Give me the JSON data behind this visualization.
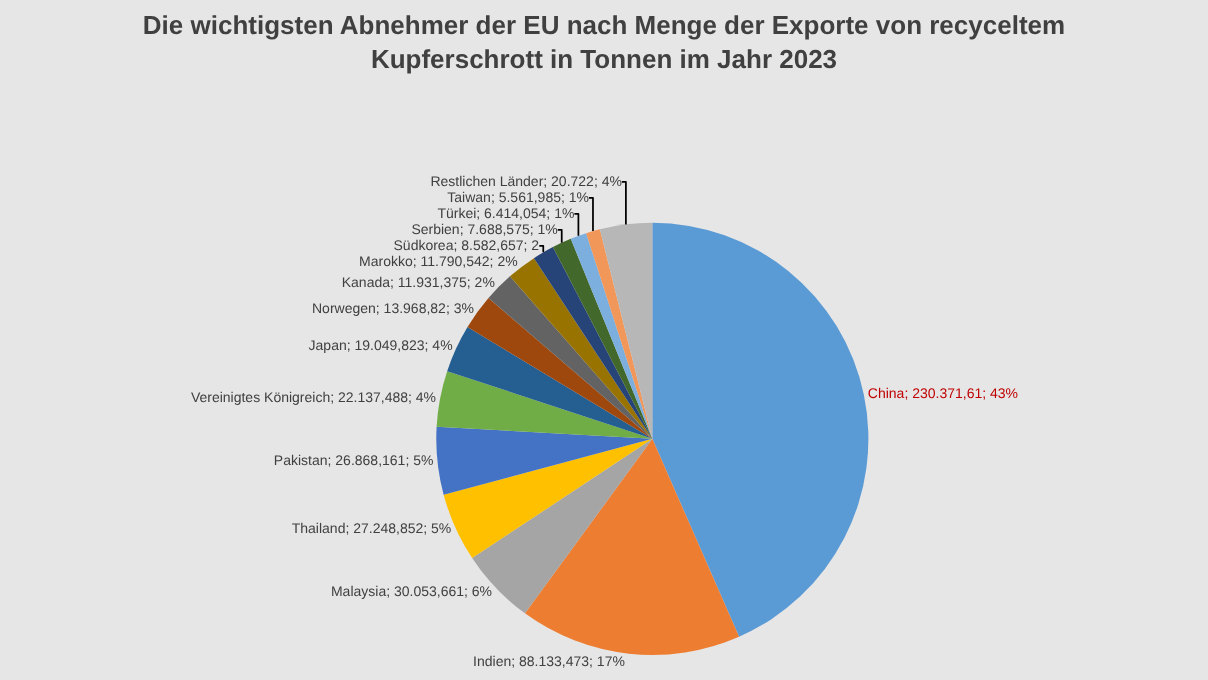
{
  "chart_data": {
    "type": "pie",
    "title": "Die wichtigsten Abnehmer der EU nach Menge der Exporte von recyceltem Kupferschrott in Tonnen im Jahr 2023",
    "categories": [
      "China",
      "Indien",
      "Malaysia",
      "Thailand",
      "Pakistan",
      "Vereinigtes Königreich",
      "Japan",
      "Norwegen",
      "Kanada",
      "Marokko",
      "Südkorea",
      "Serbien",
      "Türkei",
      "Taiwan",
      "Restlichen Länder"
    ],
    "values": [
      230371.61,
      88133.473,
      30053.661,
      27248.852,
      26868.161,
      22137.488,
      19049.823,
      13968.82,
      11931.375,
      11790.542,
      8582.657,
      7688.575,
      6414.054,
      5561.985,
      20722
    ],
    "value_labels": [
      "230.371,61; 43%",
      "88.133,473; 17%",
      "30.053,661; 6%",
      "27.248,852; 5%",
      "26.868,161; 5%",
      "22.137,488; 4%",
      "19.049,823; 4%",
      "13.968,82; 3%",
      "11.931,375; 2%",
      "11.790,542; 2%",
      "8.582,657; 2",
      "7.688,575; 1%",
      "6.414,054; 1%",
      "5.561,985; 1%",
      "20.722; 4%"
    ],
    "colors": [
      "#5b9bd5",
      "#ed7d31",
      "#a5a5a5",
      "#ffc000",
      "#4472c4",
      "#70ad47",
      "#255e91",
      "#9e480e",
      "#636363",
      "#997300",
      "#264478",
      "#43682b",
      "#7cafdd",
      "#f1975a",
      "#b7b7b7"
    ],
    "legend": false
  }
}
